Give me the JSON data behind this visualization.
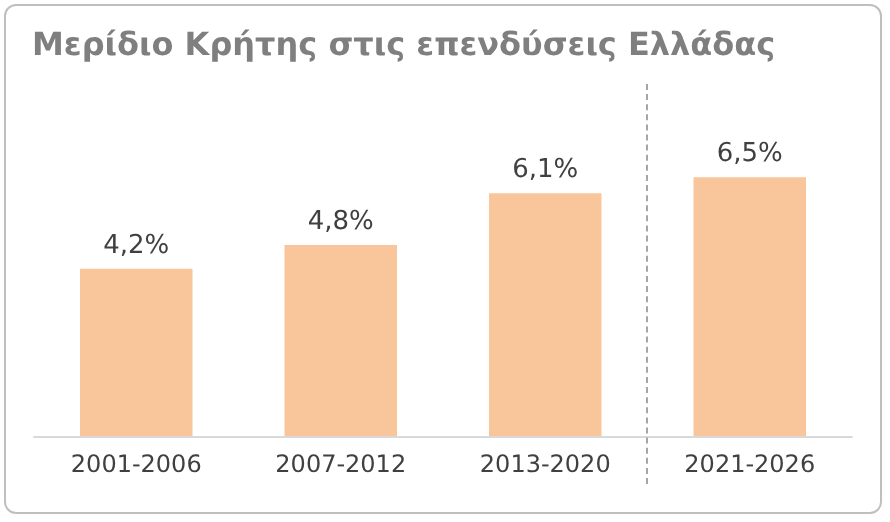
{
  "chart_data": {
    "type": "bar",
    "title": "Μερίδιο Κρήτης στις επενδύσεις Ελλάδας",
    "categories": [
      "2001-2006",
      "2007-2012",
      "2013-2020",
      "2021-2026"
    ],
    "values": [
      4.2,
      4.8,
      6.1,
      6.5
    ],
    "value_labels": [
      "4,2%",
      "4,8%",
      "6,1%",
      "6,5%"
    ],
    "color": "#f9c59a"
  }
}
